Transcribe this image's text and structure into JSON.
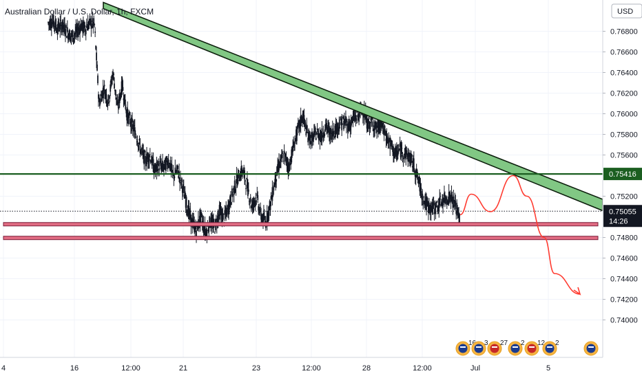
{
  "chart_data": {
    "type": "candlestick",
    "title": "Australian Dollar / U.S. Dollar, 1h, FXCM",
    "currency": "USD",
    "y_ticks": [
      "0.76800",
      "0.76600",
      "0.76400",
      "0.76200",
      "0.76000",
      "0.75800",
      "0.75600",
      "0.75200",
      "0.74800",
      "0.74600",
      "0.74400",
      "0.74200",
      "0.74000"
    ],
    "ylim": [
      0.7385,
      0.7693
    ],
    "x_ticks": [
      "4",
      "16",
      "12:00",
      "21",
      "23",
      "12:00",
      "28",
      "12:00",
      "Jul",
      "5"
    ],
    "grid": true,
    "price_path": [
      [
        0.7688,
        0.769,
        0.7683,
        0.7686,
        0.768,
        0.7675,
        0.7678,
        0.7685,
        0.7683,
        0.7688
      ],
      [
        0.7686,
        0.761,
        0.7625,
        0.7612,
        0.764,
        0.7605,
        0.7628,
        0.76,
        0.759,
        0.758
      ],
      [
        0.7565,
        0.7555,
        0.756,
        0.7545,
        0.755,
        0.7548,
        0.7555,
        0.754,
        0.7545,
        0.753
      ],
      [
        0.751,
        0.7495,
        0.7488,
        0.75,
        0.7485,
        0.7495,
        0.749,
        0.7505,
        0.7498,
        0.751
      ],
      [
        0.7525,
        0.7538,
        0.7545,
        0.753,
        0.751,
        0.752,
        0.75,
        0.7495,
        0.7512,
        0.7535
      ],
      [
        0.7552,
        0.756,
        0.7548,
        0.7568,
        0.7585,
        0.7598,
        0.758,
        0.7575,
        0.7582,
        0.7578
      ],
      [
        0.7588,
        0.758,
        0.7585,
        0.759,
        0.7592,
        0.7588,
        0.7595,
        0.7598,
        0.7605,
        0.759
      ],
      [
        0.7592,
        0.7585,
        0.759,
        0.7578,
        0.757,
        0.756,
        0.7565,
        0.7562,
        0.7558,
        0.755
      ],
      [
        0.7535,
        0.7518,
        0.751,
        0.7508,
        0.751,
        0.7515,
        0.7518,
        0.752,
        0.751,
        0.7498
      ]
    ],
    "trend_channel": {
      "start": [
        0.7708,
        0.7702
      ],
      "end": [
        0.7517,
        0.7506
      ]
    },
    "horizontal_line": {
      "value": 0.75416,
      "label": "0.75416",
      "color": "#1b5e20"
    },
    "support_zones": [
      [
        0.74945,
        0.74925
      ],
      [
        0.74812,
        0.74795
      ]
    ],
    "current_price": {
      "label": "0.75055",
      "countdown": "14:26"
    },
    "projection": [
      0.7502,
      0.7522,
      0.7505,
      0.754,
      0.752,
      0.748,
      0.7445,
      0.7425
    ],
    "events": [
      {
        "flags": [
          "au",
          "us"
        ],
        "count": "16"
      },
      {
        "flags": [
          "au"
        ],
        "count": "3"
      },
      {
        "flags": [
          "us",
          "au"
        ],
        "count": "27"
      },
      {
        "flags": [
          "au"
        ],
        "count": "2"
      },
      {
        "flags": [
          "us",
          "au"
        ],
        "count": "12"
      },
      {
        "flags": [
          "au"
        ],
        "count": "2"
      },
      {
        "flags": [
          "au"
        ],
        "count": ""
      }
    ],
    "colors": {
      "up": "#26a69a",
      "down": "#26a69a",
      "candle": "#131722",
      "channel_fill": "#81c784",
      "channel_stroke": "#0d1f0d",
      "support_fill": "#e06b82",
      "support_stroke": "#7a1f3a",
      "projection": "#ff3b30",
      "grid": "#f0f3fa"
    }
  }
}
